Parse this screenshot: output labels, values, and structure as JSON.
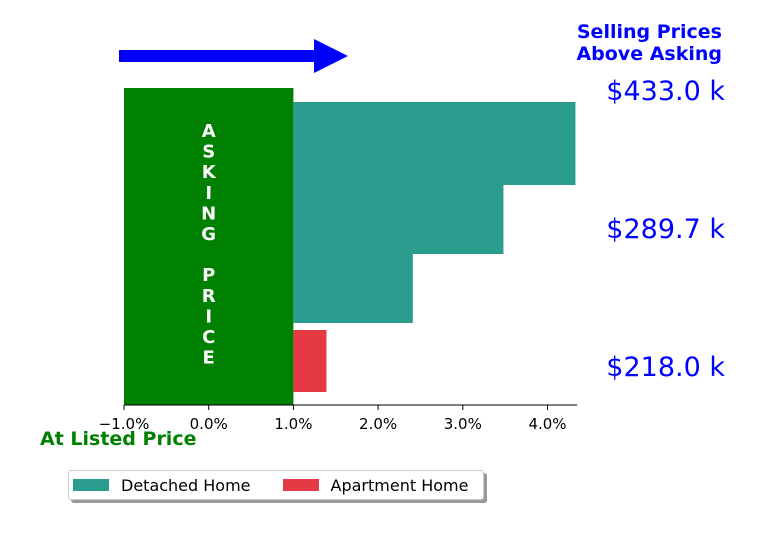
{
  "chart_data": {
    "type": "bar",
    "orientation": "horizontal",
    "xlim": [
      -1.0,
      4.35
    ],
    "x_ticks": [
      "−1.0%",
      "0.0%",
      "1.0%",
      "2.0%",
      "3.0%",
      "4.0%"
    ],
    "x_tick_values": [
      -1.0,
      0.0,
      1.0,
      2.0,
      3.0,
      4.0
    ],
    "grid": false,
    "legend_position": "bottom-left",
    "asking_band": {
      "from": -1.0,
      "to": 1.0,
      "color": "#008000",
      "letters": [
        "A",
        "S",
        "K",
        "I",
        "N",
        "G",
        "",
        "P",
        "R",
        "I",
        "C",
        "E"
      ]
    },
    "series": [
      {
        "name": "Detached Home",
        "color": "#2a9d8f",
        "bars": [
          {
            "start": 1.0,
            "end": 4.33
          },
          {
            "start": 1.0,
            "end": 3.48
          },
          {
            "start": 1.0,
            "end": 2.41
          }
        ]
      },
      {
        "name": "Apartment Home",
        "color": "#e63946",
        "bars": [
          {
            "start": 1.0,
            "end": 1.39
          }
        ]
      }
    ],
    "price_labels": [
      "$433.0 k",
      "$289.7 k",
      "$218.0 k"
    ],
    "price_color": "#0000ff",
    "top_label_lines": [
      "Selling Prices",
      "Above Asking"
    ],
    "top_label_color": "#0000ff",
    "bottom_label": "At Listed Price",
    "bottom_label_color": "#008000",
    "arrow_color": "#0000ff"
  }
}
